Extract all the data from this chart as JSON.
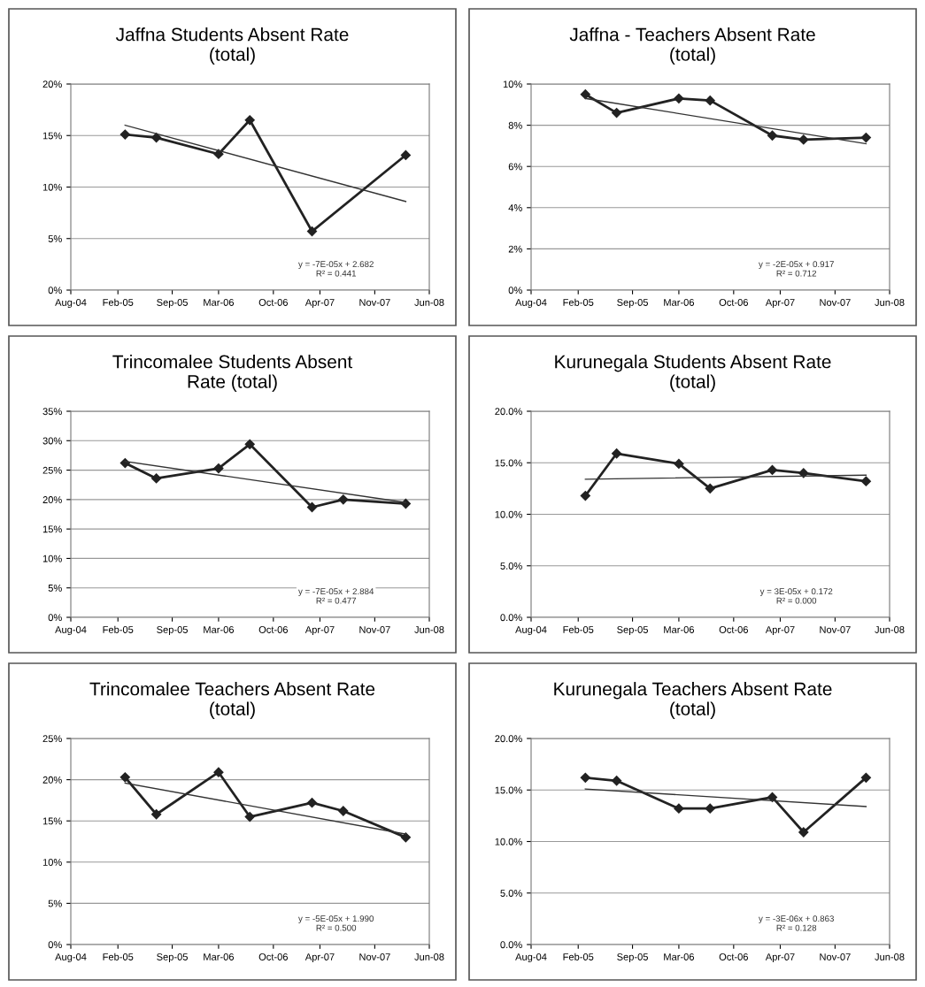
{
  "chart_data": [
    {
      "type": "line",
      "title": "Jaffna Students Absent Rate\n(total)",
      "marker": "diamond",
      "grid": "y",
      "xlim": [
        "2004-08",
        "2008-06"
      ],
      "xticks": [
        {
          "value": "2004-08",
          "label": "Aug-04"
        },
        {
          "value": "2005-02",
          "label": "Feb-05"
        },
        {
          "value": "2005-09",
          "label": "Sep-05"
        },
        {
          "value": "2006-03",
          "label": "Mar-06"
        },
        {
          "value": "2006-10",
          "label": "Oct-06"
        },
        {
          "value": "2007-04",
          "label": "Apr-07"
        },
        {
          "value": "2007-11",
          "label": "Nov-07"
        },
        {
          "value": "2008-06",
          "label": "Jun-08"
        }
      ],
      "ylim": [
        0,
        20
      ],
      "yticks": [
        {
          "value": 0,
          "label": "0%"
        },
        {
          "value": 5,
          "label": "5%"
        },
        {
          "value": 10,
          "label": "10%"
        },
        {
          "value": 15,
          "label": "15%"
        },
        {
          "value": 20,
          "label": "20%"
        }
      ],
      "series": [
        {
          "color": "#222222",
          "x": [
            "2005-03",
            "2005-07",
            "2006-03",
            "2006-07",
            "2007-03",
            "2008-03"
          ],
          "values": [
            15.1,
            14.8,
            13.2,
            16.5,
            5.7,
            13.1
          ]
        },
        {
          "color": "#333333",
          "marker": "none",
          "x": [
            "2005-03",
            "2008-03"
          ],
          "values": [
            16.0,
            8.6
          ]
        }
      ],
      "annotations": [
        "y = -7E-05x + 2.682\nR² = 0.441"
      ]
    },
    {
      "type": "line",
      "title": "Jaffna - Teachers Absent Rate\n(total)",
      "marker": "diamond",
      "grid": "y",
      "xlim": [
        "2004-08",
        "2008-06"
      ],
      "xticks": [
        {
          "value": "2004-08",
          "label": "Aug-04"
        },
        {
          "value": "2005-02",
          "label": "Feb-05"
        },
        {
          "value": "2005-09",
          "label": "Sep-05"
        },
        {
          "value": "2006-03",
          "label": "Mar-06"
        },
        {
          "value": "2006-10",
          "label": "Oct-06"
        },
        {
          "value": "2007-04",
          "label": "Apr-07"
        },
        {
          "value": "2007-11",
          "label": "Nov-07"
        },
        {
          "value": "2008-06",
          "label": "Jun-08"
        }
      ],
      "ylim": [
        0,
        10
      ],
      "yticks": [
        {
          "value": 0,
          "label": "0%"
        },
        {
          "value": 2,
          "label": "2%"
        },
        {
          "value": 4,
          "label": "4%"
        },
        {
          "value": 6,
          "label": "6%"
        },
        {
          "value": 8,
          "label": "8%"
        },
        {
          "value": 10,
          "label": "10%"
        }
      ],
      "series": [
        {
          "color": "#222222",
          "x": [
            "2005-03",
            "2005-07",
            "2006-03",
            "2006-07",
            "2007-03",
            "2007-07",
            "2008-03"
          ],
          "values": [
            9.5,
            8.6,
            9.3,
            9.2,
            7.5,
            7.3,
            7.4
          ]
        },
        {
          "color": "#333333",
          "marker": "none",
          "x": [
            "2005-03",
            "2008-03"
          ],
          "values": [
            9.3,
            7.1
          ]
        }
      ],
      "annotations": [
        "y = -2E-05x + 0.917\nR² = 0.712"
      ]
    },
    {
      "type": "line",
      "title": "Trincomalee Students Absent\nRate (total)",
      "marker": "diamond",
      "grid": "y",
      "xlim": [
        "2004-08",
        "2008-06"
      ],
      "xticks": [
        {
          "value": "2004-08",
          "label": "Aug-04"
        },
        {
          "value": "2005-02",
          "label": "Feb-05"
        },
        {
          "value": "2005-09",
          "label": "Sep-05"
        },
        {
          "value": "2006-03",
          "label": "Mar-06"
        },
        {
          "value": "2006-10",
          "label": "Oct-06"
        },
        {
          "value": "2007-04",
          "label": "Apr-07"
        },
        {
          "value": "2007-11",
          "label": "Nov-07"
        },
        {
          "value": "2008-06",
          "label": "Jun-08"
        }
      ],
      "ylim": [
        0,
        35
      ],
      "yticks": [
        {
          "value": 0,
          "label": "0%"
        },
        {
          "value": 5,
          "label": "5%"
        },
        {
          "value": 10,
          "label": "10%"
        },
        {
          "value": 15,
          "label": "15%"
        },
        {
          "value": 20,
          "label": "20%"
        },
        {
          "value": 25,
          "label": "25%"
        },
        {
          "value": 30,
          "label": "30%"
        },
        {
          "value": 35,
          "label": "35%"
        }
      ],
      "series": [
        {
          "color": "#222222",
          "x": [
            "2005-03",
            "2005-07",
            "2006-03",
            "2006-07",
            "2007-03",
            "2007-07",
            "2008-03"
          ],
          "values": [
            26.2,
            23.6,
            25.3,
            29.4,
            18.7,
            20.0,
            19.3
          ]
        },
        {
          "color": "#333333",
          "marker": "none",
          "x": [
            "2005-03",
            "2008-03"
          ],
          "values": [
            26.5,
            19.5
          ]
        }
      ],
      "annotations": [
        "y = -7E-05x + 2.884\nR² = 0.477"
      ]
    },
    {
      "type": "line",
      "title": "Kurunegala Students Absent Rate\n(total)",
      "marker": "diamond",
      "grid": "y",
      "xlim": [
        "2004-08",
        "2008-06"
      ],
      "xticks": [
        {
          "value": "2004-08",
          "label": "Aug-04"
        },
        {
          "value": "2005-02",
          "label": "Feb-05"
        },
        {
          "value": "2005-09",
          "label": "Sep-05"
        },
        {
          "value": "2006-03",
          "label": "Mar-06"
        },
        {
          "value": "2006-10",
          "label": "Oct-06"
        },
        {
          "value": "2007-04",
          "label": "Apr-07"
        },
        {
          "value": "2007-11",
          "label": "Nov-07"
        },
        {
          "value": "2008-06",
          "label": "Jun-08"
        }
      ],
      "ylim": [
        0,
        20
      ],
      "yticks": [
        {
          "value": 0,
          "label": "0.0%"
        },
        {
          "value": 5,
          "label": "5.0%"
        },
        {
          "value": 10,
          "label": "10.0%"
        },
        {
          "value": 15,
          "label": "15.0%"
        },
        {
          "value": 20,
          "label": "20.0%"
        }
      ],
      "series": [
        {
          "color": "#222222",
          "x": [
            "2005-03",
            "2005-07",
            "2006-03",
            "2006-07",
            "2007-03",
            "2007-07",
            "2008-03"
          ],
          "values": [
            11.8,
            15.9,
            14.9,
            12.5,
            14.3,
            14.0,
            13.2
          ]
        },
        {
          "color": "#333333",
          "marker": "none",
          "x": [
            "2005-03",
            "2008-03"
          ],
          "values": [
            13.4,
            13.8
          ]
        }
      ],
      "annotations": [
        "y = 3E-05x + 0.172\nR² = 0.000"
      ]
    },
    {
      "type": "line",
      "title": "Trincomalee Teachers Absent Rate\n(total)",
      "marker": "diamond",
      "grid": "y",
      "xlim": [
        "2004-08",
        "2008-06"
      ],
      "xticks": [
        {
          "value": "2004-08",
          "label": "Aug-04"
        },
        {
          "value": "2005-02",
          "label": "Feb-05"
        },
        {
          "value": "2005-09",
          "label": "Sep-05"
        },
        {
          "value": "2006-03",
          "label": "Mar-06"
        },
        {
          "value": "2006-10",
          "label": "Oct-06"
        },
        {
          "value": "2007-04",
          "label": "Apr-07"
        },
        {
          "value": "2007-11",
          "label": "Nov-07"
        },
        {
          "value": "2008-06",
          "label": "Jun-08"
        }
      ],
      "ylim": [
        0,
        25
      ],
      "yticks": [
        {
          "value": 0,
          "label": "0%"
        },
        {
          "value": 5,
          "label": "5%"
        },
        {
          "value": 10,
          "label": "10%"
        },
        {
          "value": 15,
          "label": "15%"
        },
        {
          "value": 20,
          "label": "20%"
        },
        {
          "value": 25,
          "label": "25%"
        }
      ],
      "series": [
        {
          "color": "#222222",
          "x": [
            "2005-03",
            "2005-07",
            "2006-03",
            "2006-07",
            "2007-03",
            "2007-07",
            "2008-03"
          ],
          "values": [
            20.3,
            15.8,
            20.9,
            15.5,
            17.2,
            16.2,
            13.0
          ]
        },
        {
          "color": "#333333",
          "marker": "none",
          "x": [
            "2005-03",
            "2008-03"
          ],
          "values": [
            19.6,
            13.4
          ]
        }
      ],
      "annotations": [
        "y = -5E-05x + 1.990\nR² = 0.500"
      ]
    },
    {
      "type": "line",
      "title": "Kurunegala Teachers Absent Rate\n(total)",
      "marker": "diamond",
      "grid": "y",
      "xlim": [
        "2004-08",
        "2008-06"
      ],
      "xticks": [
        {
          "value": "2004-08",
          "label": "Aug-04"
        },
        {
          "value": "2005-02",
          "label": "Feb-05"
        },
        {
          "value": "2005-09",
          "label": "Sep-05"
        },
        {
          "value": "2006-03",
          "label": "Mar-06"
        },
        {
          "value": "2006-10",
          "label": "Oct-06"
        },
        {
          "value": "2007-04",
          "label": "Apr-07"
        },
        {
          "value": "2007-11",
          "label": "Nov-07"
        },
        {
          "value": "2008-06",
          "label": "Jun-08"
        }
      ],
      "ylim": [
        0,
        20
      ],
      "yticks": [
        {
          "value": 0,
          "label": "0.0%"
        },
        {
          "value": 5,
          "label": "5.0%"
        },
        {
          "value": 10,
          "label": "10.0%"
        },
        {
          "value": 15,
          "label": "15.0%"
        },
        {
          "value": 20,
          "label": "20.0%"
        }
      ],
      "series": [
        {
          "color": "#222222",
          "x": [
            "2005-03",
            "2005-07",
            "2006-03",
            "2006-07",
            "2007-03",
            "2007-07",
            "2008-03"
          ],
          "values": [
            16.2,
            15.9,
            13.2,
            13.2,
            14.3,
            10.9,
            16.2
          ]
        },
        {
          "color": "#333333",
          "marker": "none",
          "x": [
            "2005-03",
            "2008-03"
          ],
          "values": [
            15.1,
            13.4
          ]
        }
      ],
      "annotations": [
        "y = -3E-06x + 0.863\nR² = 0.128"
      ]
    }
  ]
}
